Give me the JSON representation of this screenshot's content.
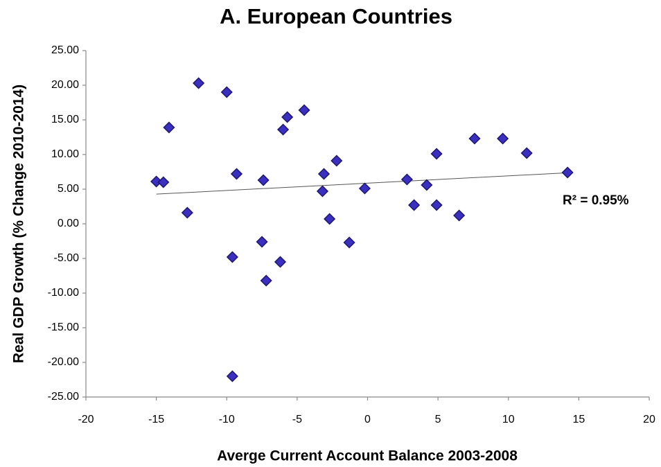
{
  "chart_data": {
    "type": "scatter",
    "title": "A. European Countries",
    "xlabel": "Averge Current Account Balance 2003-2008",
    "ylabel": "Real GDP Growth (% Change 2010-2014)",
    "annotation": "R² = 0.95%",
    "color": "#3b2fc0",
    "trendline": true,
    "x": [
      -15.0,
      -14.5,
      -14.1,
      -12.8,
      -12.0,
      -10.0,
      -9.6,
      -9.6,
      -9.3,
      -7.4,
      -7.5,
      -7.2,
      -6.2,
      -6.0,
      -5.7,
      -4.5,
      -3.1,
      -3.2,
      -2.7,
      -2.2,
      -1.3,
      -0.2,
      2.8,
      3.3,
      4.2,
      4.9,
      4.9,
      6.5,
      7.6,
      9.6,
      11.3,
      14.2
    ],
    "values": [
      6.1,
      6.0,
      13.9,
      1.6,
      20.3,
      19.0,
      -22.0,
      -4.8,
      7.2,
      6.3,
      -2.6,
      -8.2,
      -5.5,
      13.6,
      15.4,
      16.4,
      7.2,
      4.7,
      0.7,
      9.1,
      -2.7,
      5.1,
      6.4,
      2.7,
      5.6,
      2.7,
      10.1,
      1.2,
      12.3,
      12.3,
      10.2,
      7.4
    ],
    "xlim": [
      -20,
      20
    ],
    "xticks": [
      -20,
      -15,
      -10,
      -5,
      0,
      5,
      10,
      15,
      20
    ],
    "ylim": [
      -25,
      25
    ],
    "yticks": [
      {
        "value": -25,
        "label": "-25.00"
      },
      {
        "value": -20,
        "label": "-20.00"
      },
      {
        "value": -15,
        "label": "-15.00"
      },
      {
        "value": -10,
        "label": "-10.00"
      },
      {
        "value": -5,
        "label": "-5.00"
      },
      {
        "value": 0,
        "label": "0.00"
      },
      {
        "value": 5,
        "label": "5.00"
      },
      {
        "value": 10,
        "label": "10.00"
      },
      {
        "value": 15,
        "label": "15.00"
      },
      {
        "value": 20,
        "label": "20.00"
      },
      {
        "value": 25,
        "label": "25.00"
      }
    ]
  }
}
